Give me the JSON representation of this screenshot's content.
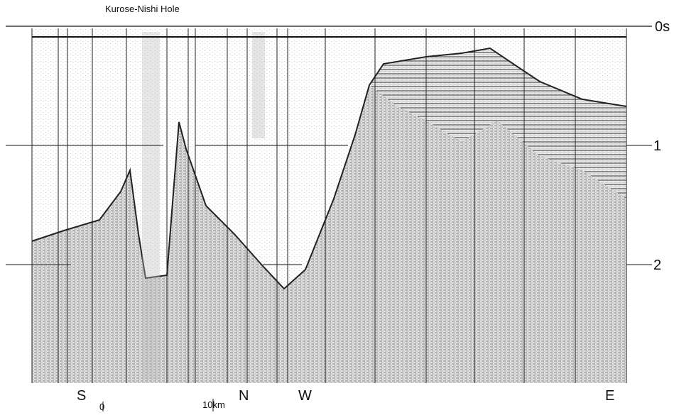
{
  "title": "Kurose-Nishi Hole",
  "time_labels": [
    "0s",
    "1",
    "2"
  ],
  "direction_labels": [
    "S",
    "N",
    "W",
    "E"
  ],
  "scale": {
    "start": "0",
    "end": "10km"
  }
}
